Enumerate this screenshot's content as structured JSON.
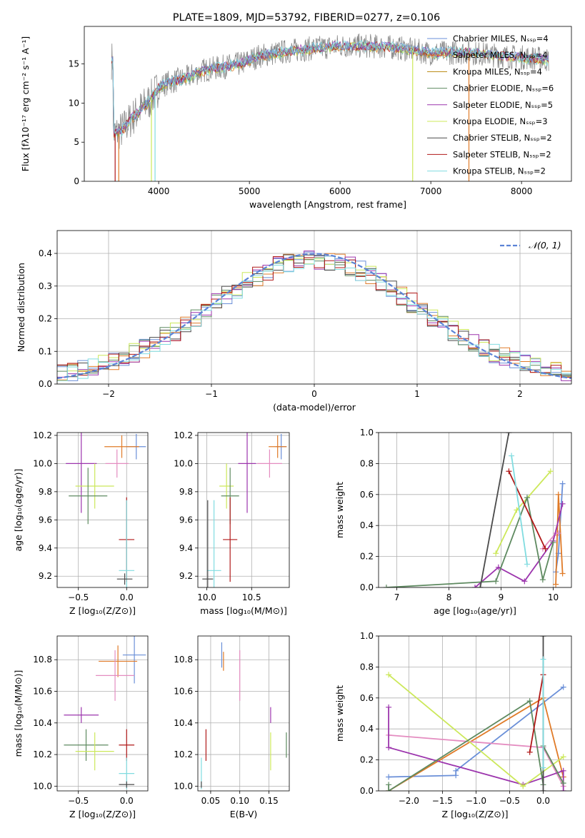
{
  "colors": {
    "chabrier_miles": "#6a8fd8",
    "salpeter_miles": "#e07b28",
    "kroupa_miles": "#b8860b",
    "chabrier_elodie": "#5e8a60",
    "salpeter_elodie": "#9c35ad",
    "kroupa_elodie": "#cce85a",
    "chabrier_stelib": "#4a4a4a",
    "salpeter_stelib": "#b01818",
    "kroupa_stelib": "#80dce0",
    "pink": "#e48cc0",
    "gray_data": "#8a8a8a",
    "normal_curve": "#5b83d6"
  },
  "chart_data": [
    {
      "id": "spectrum",
      "type": "line",
      "title": "PLATE=1809, MJD=53792, FIBERID=0277, z=0.106",
      "xlabel": "wavelength [Angstrom, rest frame]",
      "ylabel": "Flux [fλ10⁻¹⁷ erg cm⁻² s⁻¹ A⁻¹]",
      "xlim": [
        3180,
        8550
      ],
      "ylim": [
        0,
        19.8
      ],
      "xticks": [
        "4000",
        "5000",
        "6000",
        "7000",
        "8000"
      ],
      "yticks": [
        "0",
        "5",
        "10",
        "15"
      ],
      "legend": [
        "Chabrier MILES, Nₛₛₚ=4",
        "Salpeter MILES, Nₛₛₚ=4",
        "Kroupa MILES, Nₛₛₚ=4",
        "Chabrier ELODIE, Nₛₛₚ=6",
        "Salpeter ELODIE, Nₛₛₚ=5",
        "Kroupa ELODIE, Nₛₛₚ=3",
        "Chabrier STELIB, Nₛₛₚ=2",
        "Salpeter STELIB, Nₛₛₚ=2",
        "Kroupa STELIB, Nₛₛₚ=2"
      ],
      "legend_placement": "top-right",
      "continuum": [
        [
          3500,
          6
        ],
        [
          3600,
          6.6
        ],
        [
          3700,
          8
        ],
        [
          3800,
          9.2
        ],
        [
          3900,
          10.3
        ],
        [
          4000,
          12
        ],
        [
          4100,
          12.6
        ],
        [
          4300,
          13.2
        ],
        [
          4500,
          14.2
        ],
        [
          4700,
          14.6
        ],
        [
          4900,
          15
        ],
        [
          5100,
          16
        ],
        [
          5400,
          16.6
        ],
        [
          5700,
          17
        ],
        [
          6000,
          17.3
        ],
        [
          6300,
          17.3
        ],
        [
          6600,
          17.1
        ],
        [
          7000,
          16.4
        ],
        [
          7400,
          16.5
        ],
        [
          7800,
          16
        ],
        [
          8200,
          15.7
        ],
        [
          8300,
          15.5
        ]
      ]
    },
    {
      "id": "residuals",
      "type": "histogram",
      "xlabel": "(data-model)/error",
      "ylabel": "Normed distribution",
      "xlim": [
        -2.5,
        2.5
      ],
      "ylim": [
        0,
        0.47
      ],
      "xticks": [
        "−2",
        "−1",
        "0",
        "1",
        "2"
      ],
      "yticks": [
        "0.0",
        "0.1",
        "0.2",
        "0.3",
        "0.4"
      ],
      "legend": [
        "𝒩(0, 1)"
      ],
      "legend_placement": "top-right",
      "bin_width": 0.1,
      "grid": true
    },
    {
      "id": "age_vs_Z",
      "type": "errorbar",
      "xlabel": "Z [log₁₀(Z/Z⊙)]",
      "ylabel": "age  [log₁₀(age/yr)]",
      "xlim": [
        -0.72,
        0.22
      ],
      "ylim": [
        9.12,
        10.22
      ],
      "xticks": [
        "−0.5",
        "0.0"
      ],
      "yticks": [
        "9.2",
        "9.4",
        "9.6",
        "9.8",
        "10.0",
        "10.2"
      ],
      "points": [
        {
          "c": "chabrier_miles",
          "x": 0.1,
          "xe": 0.1,
          "y": 10.12,
          "ye": 0.09
        },
        {
          "c": "salpeter_miles",
          "x": -0.05,
          "xe": 0.18,
          "y": 10.12,
          "ye": 0.08
        },
        {
          "c": "pink",
          "x": -0.1,
          "xe": 0.12,
          "y": 10.0,
          "ye": 0.1
        },
        {
          "c": "salpeter_elodie",
          "x": -0.47,
          "xe": 0.16,
          "y": 10.0,
          "ye": 0.35
        },
        {
          "c": "kroupa_elodie",
          "x": -0.33,
          "xe": 0.2,
          "y": 9.84,
          "ye": 0.16
        },
        {
          "c": "chabrier_elodie",
          "x": -0.4,
          "xe": 0.2,
          "y": 9.77,
          "ye": 0.2
        },
        {
          "c": "salpeter_stelib",
          "x": 0.0,
          "xe": 0.08,
          "y": 9.46,
          "ye": 0.3
        },
        {
          "c": "kroupa_stelib",
          "x": 0.0,
          "xe": 0.08,
          "y": 9.24,
          "ye": 0.5
        },
        {
          "c": "chabrier_stelib",
          "x": -0.02,
          "xe": 0.08,
          "y": 9.18,
          "ye": 0.04
        }
      ]
    },
    {
      "id": "age_vs_mass",
      "type": "errorbar",
      "xlabel": "mass [log₁₀(M/M⊙)]",
      "ylabel": "",
      "xlim": [
        9.9,
        10.92
      ],
      "ylim": [
        9.12,
        10.22
      ],
      "xticks": [
        "10.0",
        "10.5"
      ],
      "yticks": [
        "9.2",
        "9.4",
        "9.6",
        "9.8",
        "10.0",
        "10.2"
      ],
      "points": [
        {
          "c": "chabrier_miles",
          "x": 10.83,
          "xe": 0.06,
          "y": 10.12,
          "ye": 0.09
        },
        {
          "c": "salpeter_miles",
          "x": 10.79,
          "xe": 0.1,
          "y": 10.12,
          "ye": 0.08
        },
        {
          "c": "pink",
          "x": 10.7,
          "xe": 0.14,
          "y": 10.0,
          "ye": 0.1
        },
        {
          "c": "salpeter_elodie",
          "x": 10.45,
          "xe": 0.1,
          "y": 10.0,
          "ye": 0.35
        },
        {
          "c": "kroupa_elodie",
          "x": 10.22,
          "xe": 0.08,
          "y": 9.84,
          "ye": 0.16
        },
        {
          "c": "chabrier_elodie",
          "x": 10.26,
          "xe": 0.1,
          "y": 9.77,
          "ye": 0.2
        },
        {
          "c": "salpeter_stelib",
          "x": 10.26,
          "xe": 0.08,
          "y": 9.46,
          "ye": 0.3
        },
        {
          "c": "kroupa_stelib",
          "x": 10.08,
          "xe": 0.08,
          "y": 9.24,
          "ye": 0.5
        },
        {
          "c": "chabrier_stelib",
          "x": 10.01,
          "xe": 0.06,
          "y": 9.18,
          "ye": 0.56
        }
      ]
    },
    {
      "id": "weight_vs_age",
      "type": "line",
      "xlabel": "age  [log₁₀(age/yr)]",
      "ylabel": "mass weight",
      "xlim": [
        6.65,
        10.35
      ],
      "ylim": [
        0,
        1
      ],
      "xticks": [
        "7",
        "8",
        "9",
        "10"
      ],
      "yticks": [
        "0.0",
        "0.2",
        "0.4",
        "0.6",
        "0.8",
        "1.0"
      ],
      "grid": true,
      "series": [
        {
          "c": "chabrier_miles",
          "x": [
            10.05,
            10.1,
            10.18
          ],
          "y": [
            0.1,
            0.22,
            0.67
          ]
        },
        {
          "c": "salpeter_miles",
          "x": [
            10.05,
            10.1,
            10.18
          ],
          "y": [
            0.02,
            0.6,
            0.09
          ]
        },
        {
          "c": "pink",
          "x": [
            9.8,
            10.05,
            10.1
          ],
          "y": [
            0.25,
            0.35,
            0.35
          ]
        },
        {
          "c": "salpeter_elodie",
          "x": [
            8.5,
            8.95,
            9.45,
            10.0,
            10.18
          ],
          "y": [
            0.0,
            0.13,
            0.04,
            0.3,
            0.54
          ]
        },
        {
          "c": "kroupa_elodie",
          "x": [
            8.9,
            9.3,
            9.95
          ],
          "y": [
            0.22,
            0.5,
            0.75
          ]
        },
        {
          "c": "chabrier_elodie",
          "x": [
            6.8,
            8.9,
            9.5,
            9.8,
            10.0
          ],
          "y": [
            0.0,
            0.04,
            0.58,
            0.05,
            0.29
          ]
        },
        {
          "c": "chabrier_stelib",
          "x": [
            8.6,
            9.15
          ],
          "y": [
            0.0,
            1.0
          ]
        },
        {
          "c": "salpeter_stelib",
          "x": [
            9.15,
            9.85
          ],
          "y": [
            0.75,
            0.25
          ]
        },
        {
          "c": "kroupa_stelib",
          "x": [
            9.2,
            9.5
          ],
          "y": [
            0.85,
            0.15
          ]
        }
      ]
    },
    {
      "id": "mass_vs_Z",
      "type": "errorbar",
      "xlabel": "Z [log₁₀(Z/Z⊙)]",
      "ylabel": "mass [log₁₀(M/M⊙)]",
      "xlim": [
        -0.72,
        0.22
      ],
      "ylim": [
        9.97,
        10.95
      ],
      "xticks": [
        "−0.5",
        "0.0"
      ],
      "yticks": [
        "10.0",
        "10.2",
        "10.4",
        "10.6",
        "10.8"
      ],
      "points": [
        {
          "c": "chabrier_miles",
          "x": 0.08,
          "xe": 0.12,
          "y": 10.83,
          "ye": 0.18
        },
        {
          "c": "salpeter_miles",
          "x": -0.09,
          "xe": 0.2,
          "y": 10.79,
          "ye": 0.1
        },
        {
          "c": "pink",
          "x": -0.12,
          "xe": 0.2,
          "y": 10.7,
          "ye": 0.16
        },
        {
          "c": "salpeter_elodie",
          "x": -0.47,
          "xe": 0.18,
          "y": 10.45,
          "ye": 0.05
        },
        {
          "c": "chabrier_elodie",
          "x": -0.42,
          "xe": 0.23,
          "y": 10.26,
          "ye": 0.1
        },
        {
          "c": "kroupa_elodie",
          "x": -0.33,
          "xe": 0.2,
          "y": 10.22,
          "ye": 0.12
        },
        {
          "c": "salpeter_stelib",
          "x": 0.0,
          "xe": 0.08,
          "y": 10.26,
          "ye": 0.1
        },
        {
          "c": "kroupa_stelib",
          "x": 0.0,
          "xe": 0.08,
          "y": 10.08,
          "ye": 0.1
        },
        {
          "c": "chabrier_stelib",
          "x": 0.0,
          "xe": 0.08,
          "y": 10.01,
          "ye": 0.02
        }
      ]
    },
    {
      "id": "mass_vs_EBV",
      "type": "errorbar",
      "xlabel": "E(B-V)",
      "ylabel": "",
      "xlim": [
        0.028,
        0.185
      ],
      "ylim": [
        9.97,
        10.95
      ],
      "xticks": [
        "0.05",
        "0.10",
        "0.15"
      ],
      "yticks": [
        "10.0",
        "10.2",
        "10.4",
        "10.6",
        "10.8"
      ],
      "points": [
        {
          "c": "chabrier_miles",
          "x": 0.069,
          "xe": 0,
          "y": 10.83,
          "ye": 0.08
        },
        {
          "c": "salpeter_miles",
          "x": 0.072,
          "xe": 0,
          "y": 10.79,
          "ye": 0.06
        },
        {
          "c": "pink",
          "x": 0.1,
          "xe": 0,
          "y": 10.7,
          "ye": 0.16
        },
        {
          "c": "salpeter_elodie",
          "x": 0.153,
          "xe": 0,
          "y": 10.45,
          "ye": 0.05
        },
        {
          "c": "chabrier_elodie",
          "x": 0.18,
          "xe": 0,
          "y": 10.26,
          "ye": 0.08
        },
        {
          "c": "kroupa_elodie",
          "x": 0.153,
          "xe": 0,
          "y": 10.22,
          "ye": 0.12
        },
        {
          "c": "salpeter_stelib",
          "x": 0.042,
          "xe": 0,
          "y": 10.26,
          "ye": 0.1
        },
        {
          "c": "kroupa_stelib",
          "x": 0.034,
          "xe": 0,
          "y": 10.08,
          "ye": 0.1
        },
        {
          "c": "chabrier_stelib",
          "x": 0.034,
          "xe": 0,
          "y": 10.01,
          "ye": 0.02
        }
      ]
    },
    {
      "id": "weight_vs_Z",
      "type": "line",
      "xlabel": "Z [log₁₀(Z/Z⊙)]",
      "ylabel": "mass weight",
      "xlim": [
        -2.45,
        0.42
      ],
      "ylim": [
        0,
        1
      ],
      "xticks": [
        "−2.0",
        "−1.5",
        "−1.0",
        "−0.5",
        "0.0"
      ],
      "yticks": [
        "0.0",
        "0.2",
        "0.4",
        "0.6",
        "0.8",
        "1.0"
      ],
      "grid": true,
      "series": [
        {
          "c": "chabrier_miles",
          "x": [
            -2.3,
            -1.3,
            -1.3,
            0.3
          ],
          "y": [
            0.09,
            0.1,
            0.13,
            0.67
          ]
        },
        {
          "c": "salpeter_miles",
          "x": [
            -2.3,
            0.0,
            0.3
          ],
          "y": [
            0.0,
            0.6,
            0.09
          ]
        },
        {
          "c": "pink",
          "x": [
            -2.3,
            0.0,
            0.3
          ],
          "y": [
            0.36,
            0.28,
            0.03
          ]
        },
        {
          "c": "salpeter_elodie",
          "x": [
            -2.3,
            -2.3,
            -0.3,
            0.3,
            0.3
          ],
          "y": [
            0.54,
            0.28,
            0.04,
            0.13,
            0.0
          ]
        },
        {
          "c": "kroupa_elodie",
          "x": [
            -2.3,
            -0.3,
            0.3
          ],
          "y": [
            0.75,
            0.03,
            0.22
          ]
        },
        {
          "c": "chabrier_elodie",
          "x": [
            -2.3,
            -2.3,
            -0.2,
            0.0,
            0.0,
            0.3
          ],
          "y": [
            0.04,
            0.0,
            0.58,
            0.04,
            0.29,
            0.05
          ]
        },
        {
          "c": "chabrier_stelib",
          "x": [
            0.0,
            0.0
          ],
          "y": [
            0.0,
            1.0
          ]
        },
        {
          "c": "salpeter_stelib",
          "x": [
            -0.2,
            0.0
          ],
          "y": [
            0.25,
            0.75
          ]
        },
        {
          "c": "kroupa_stelib",
          "x": [
            0.0,
            0.0
          ],
          "y": [
            0.15,
            0.85
          ]
        }
      ]
    }
  ]
}
